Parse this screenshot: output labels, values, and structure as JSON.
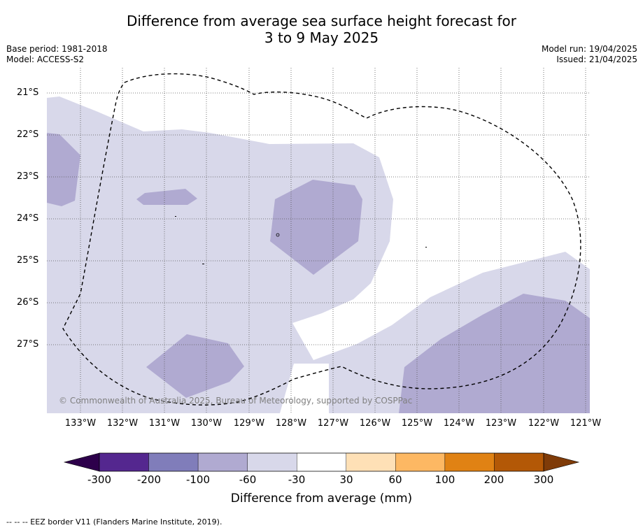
{
  "title_line1": "Difference from average sea surface height forecast for",
  "title_line2": "3 to 9 May 2025",
  "meta_left": [
    "Base period: 1981-2018",
    "Model: ACCESS-S2"
  ],
  "meta_right": [
    "Model run: 19/04/2025",
    "Issued: 21/04/2025"
  ],
  "lat_labels": [
    "21°S",
    "22°S",
    "23°S",
    "24°S",
    "25°S",
    "26°S",
    "27°S"
  ],
  "lon_labels": [
    "133°W",
    "132°W",
    "131°W",
    "130°W",
    "129°W",
    "128°W",
    "127°W",
    "126°W",
    "125°W",
    "124°W",
    "123°W",
    "122°W",
    "121°W"
  ],
  "copyright": "© Commonwealth of Australia 2025, Bureau of Meteorology, supported by COSPPac",
  "colorbar": {
    "ticks": [
      "-300",
      "-200",
      "-100",
      "-60",
      "-30",
      "30",
      "60",
      "100",
      "200",
      "300"
    ],
    "colors": [
      "#54278f",
      "#807dba",
      "#b0aad1",
      "#d8d8ea",
      "#ffffff",
      "#fee0b6",
      "#fdb863",
      "#e08214",
      "#b35806"
    ],
    "min_color": "#2d004b",
    "max_color": "#7f3b08",
    "label": "Difference from average (mm)"
  },
  "footnote": "--  --  -- EEZ border V11 (Flanders Marine Institute, 2019)."
}
